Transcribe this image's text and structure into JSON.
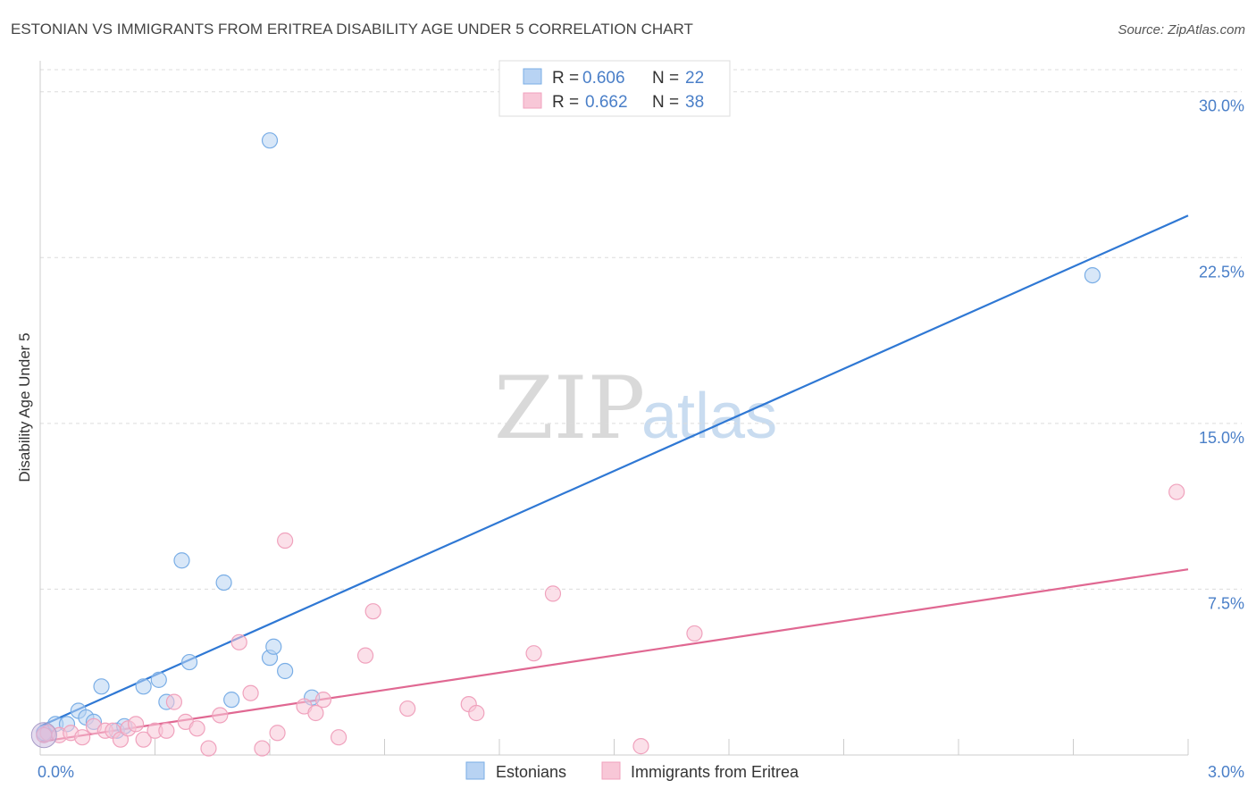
{
  "chart_data": {
    "type": "scatter",
    "title": "ESTONIAN VS IMMIGRANTS FROM ERITREA DISABILITY AGE UNDER 5 CORRELATION CHART",
    "source": "Source: ZipAtlas.com",
    "ylabel": "Disability Age Under 5",
    "xlim": [
      0,
      3.0
    ],
    "ylim": [
      0,
      31.0
    ],
    "x_ticks": [
      {
        "value": 0,
        "label": "0.0%"
      },
      {
        "value": 3.0,
        "label": "3.0%"
      }
    ],
    "y_ticks": [
      {
        "value": 7.5,
        "label": "7.5%"
      },
      {
        "value": 15.0,
        "label": "15.0%"
      },
      {
        "value": 22.5,
        "label": "22.5%"
      },
      {
        "value": 30.0,
        "label": "30.0%"
      }
    ],
    "grid": true,
    "legend": {
      "placement": "top-center",
      "entries": [
        {
          "r_label": "R = ",
          "r_value": "0.606",
          "n_label": "N = ",
          "n_value": "22"
        },
        {
          "r_label": "R = ",
          "r_value": "0.662",
          "n_label": "N = ",
          "n_value": "38"
        }
      ]
    },
    "bottom_legend": [
      "Estonians",
      "Immigrants from Eritrea"
    ],
    "watermark": {
      "zip": "ZIP",
      "atlas": "atlas"
    },
    "series": [
      {
        "name": "Estonians",
        "color": "#7aaee6",
        "fill": "#b8d3f3",
        "line_color": "#2f78d4",
        "trend": [
          [
            0,
            1.3
          ],
          [
            3.0,
            24.4
          ]
        ],
        "points": [
          [
            0.01,
            1.0
          ],
          [
            0.04,
            1.4
          ],
          [
            0.07,
            1.4
          ],
          [
            0.1,
            2.0
          ],
          [
            0.12,
            1.7
          ],
          [
            0.14,
            1.5
          ],
          [
            0.16,
            3.1
          ],
          [
            0.2,
            1.1
          ],
          [
            0.22,
            1.3
          ],
          [
            0.27,
            3.1
          ],
          [
            0.31,
            3.4
          ],
          [
            0.33,
            2.4
          ],
          [
            0.37,
            8.8
          ],
          [
            0.39,
            4.2
          ],
          [
            0.48,
            7.8
          ],
          [
            0.5,
            2.5
          ],
          [
            0.6,
            4.4
          ],
          [
            0.61,
            4.9
          ],
          [
            0.64,
            3.8
          ],
          [
            0.71,
            2.6
          ],
          [
            0.6,
            27.8
          ],
          [
            2.75,
            21.7
          ]
        ]
      },
      {
        "name": "Immigrants from Eritrea",
        "color": "#f0a2bd",
        "fill": "#f8c7d7",
        "line_color": "#e06892",
        "trend": [
          [
            0,
            0.6
          ],
          [
            3.0,
            8.4
          ]
        ],
        "points": [
          [
            0.02,
            1.0
          ],
          [
            0.05,
            0.9
          ],
          [
            0.08,
            1.0
          ],
          [
            0.11,
            0.8
          ],
          [
            0.14,
            1.3
          ],
          [
            0.17,
            1.1
          ],
          [
            0.19,
            1.1
          ],
          [
            0.21,
            0.7
          ],
          [
            0.23,
            1.2
          ],
          [
            0.25,
            1.4
          ],
          [
            0.27,
            0.7
          ],
          [
            0.3,
            1.1
          ],
          [
            0.33,
            1.1
          ],
          [
            0.35,
            2.4
          ],
          [
            0.38,
            1.5
          ],
          [
            0.41,
            1.2
          ],
          [
            0.44,
            0.3
          ],
          [
            0.47,
            1.8
          ],
          [
            0.52,
            5.1
          ],
          [
            0.55,
            2.8
          ],
          [
            0.58,
            0.3
          ],
          [
            0.62,
            1.0
          ],
          [
            0.64,
            9.7
          ],
          [
            0.69,
            2.2
          ],
          [
            0.72,
            1.9
          ],
          [
            0.74,
            2.5
          ],
          [
            0.78,
            0.8
          ],
          [
            0.85,
            4.5
          ],
          [
            0.87,
            6.5
          ],
          [
            0.96,
            2.1
          ],
          [
            1.12,
            2.3
          ],
          [
            1.14,
            1.9
          ],
          [
            1.29,
            4.6
          ],
          [
            1.34,
            7.3
          ],
          [
            1.57,
            0.4
          ],
          [
            1.71,
            5.5
          ],
          [
            2.97,
            11.9
          ],
          [
            0.01,
            0.9
          ]
        ]
      }
    ]
  }
}
